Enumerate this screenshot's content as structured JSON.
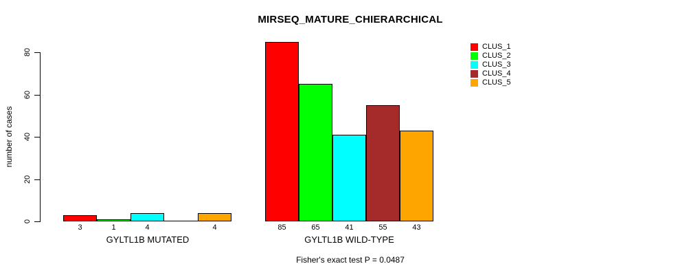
{
  "title": "MIRSEQ_MATURE_CHIERARCHICAL",
  "footnote": "Fisher's exact test P = 0.0487",
  "colors": {
    "background": "#FFFFFF",
    "axis": "#000000",
    "clus_1": "#FF0000",
    "clus_2": "#00FF00",
    "clus_3": "#00FFFF",
    "clus_4": "#A52A2A",
    "clus_5": "#FFA500"
  },
  "legend": {
    "items": [
      {
        "label": "CLUS_1",
        "color": "#FF0000"
      },
      {
        "label": "CLUS_2",
        "color": "#00FF00"
      },
      {
        "label": "CLUS_3",
        "color": "#00FFFF"
      },
      {
        "label": "CLUS_4",
        "color": "#A52A2A"
      },
      {
        "label": "CLUS_5",
        "color": "#FFA500"
      }
    ]
  },
  "chart_data": {
    "type": "bar",
    "title": "MIRSEQ_MATURE_CHIERARCHICAL",
    "xlabel": "",
    "ylabel": "number of cases",
    "categories": [
      "GYLTL1B MUTATED",
      "GYLTL1B WILD-TYPE"
    ],
    "series": [
      {
        "name": "CLUS_1",
        "color": "#FF0000",
        "values": [
          3,
          85
        ]
      },
      {
        "name": "CLUS_2",
        "color": "#00FF00",
        "values": [
          1,
          65
        ]
      },
      {
        "name": "CLUS_3",
        "color": "#00FFFF",
        "values": [
          4,
          41
        ]
      },
      {
        "name": "CLUS_4",
        "color": "#A52A2A",
        "values": [
          0,
          55
        ]
      },
      {
        "name": "CLUS_5",
        "color": "#FFA500",
        "values": [
          4,
          43
        ]
      }
    ],
    "bar_value_labels": [
      [
        "3",
        "1",
        "4",
        "",
        "4"
      ],
      [
        "85",
        "65",
        "41",
        "55",
        "43"
      ]
    ],
    "ylim": [
      0,
      80
    ],
    "yticks": [
      0,
      20,
      40,
      60,
      80
    ],
    "grid": false,
    "legend_position": "top-right",
    "annotation": "Fisher's exact test P = 0.0487"
  }
}
